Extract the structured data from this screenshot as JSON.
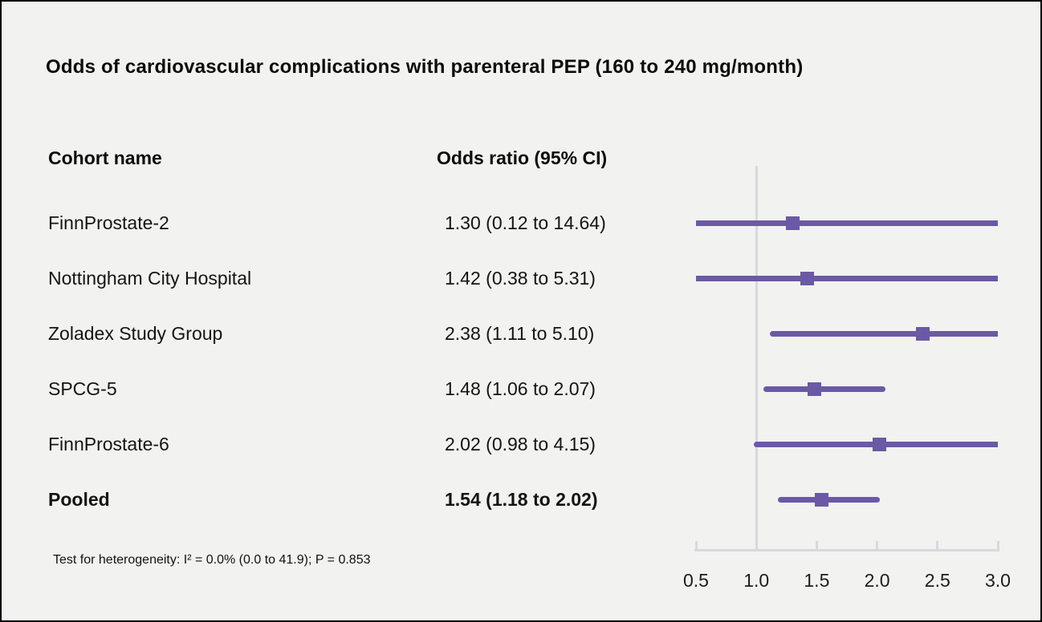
{
  "title": "Odds of cardiovascular complications with parenteral PEP (160 to 240 mg/month)",
  "columns": {
    "cohort": "Cohort name",
    "odds": "Odds ratio (95% CI)"
  },
  "footer": "Test for heterogeneity: I² = 0.0% (0.0 to 41.9); P = 0.853",
  "colors": {
    "accent": "#6b59a5",
    "axis_gray": "#d5d9e0",
    "background": "#f2f2f0",
    "text": "#141414"
  },
  "chart_data": {
    "type": "forest",
    "title": "Odds of cardiovascular complications with parenteral PEP (160 to 240 mg/month)",
    "xlabel": "Odds ratio",
    "xlim": [
      0.5,
      3.0
    ],
    "x_scale": "linear",
    "reference_value": 1.0,
    "x_ticks": [
      0.5,
      1.0,
      1.5,
      2.0,
      2.5,
      3.0
    ],
    "x_tick_labels": [
      "0.5",
      "1.0",
      "1.5",
      "2.0",
      "2.5",
      "3.0"
    ],
    "marker_shape": "square",
    "ci_clipping": "intervals beyond xlim are clipped flat at 0.5 and 3.0",
    "rows": [
      {
        "name": "FinnProstate-2",
        "estimate": 1.3,
        "ci_low": 0.12,
        "ci_high": 14.64,
        "label": "1.30 (0.12 to 14.64)",
        "bold": false
      },
      {
        "name": "Nottingham City Hospital",
        "estimate": 1.42,
        "ci_low": 0.38,
        "ci_high": 5.31,
        "label": "1.42 (0.38 to 5.31)",
        "bold": false
      },
      {
        "name": "Zoladex Study Group",
        "estimate": 2.38,
        "ci_low": 1.11,
        "ci_high": 5.1,
        "label": "2.38 (1.11 to 5.10)",
        "bold": false
      },
      {
        "name": "SPCG-5",
        "estimate": 1.48,
        "ci_low": 1.06,
        "ci_high": 2.07,
        "label": "1.48 (1.06 to 2.07)",
        "bold": false
      },
      {
        "name": "FinnProstate-6",
        "estimate": 2.02,
        "ci_low": 0.98,
        "ci_high": 4.15,
        "label": "2.02 (0.98 to 4.15)",
        "bold": false
      },
      {
        "name": "Pooled",
        "estimate": 1.54,
        "ci_low": 1.18,
        "ci_high": 2.02,
        "label": "1.54 (1.18 to 2.02)",
        "bold": true
      }
    ]
  }
}
